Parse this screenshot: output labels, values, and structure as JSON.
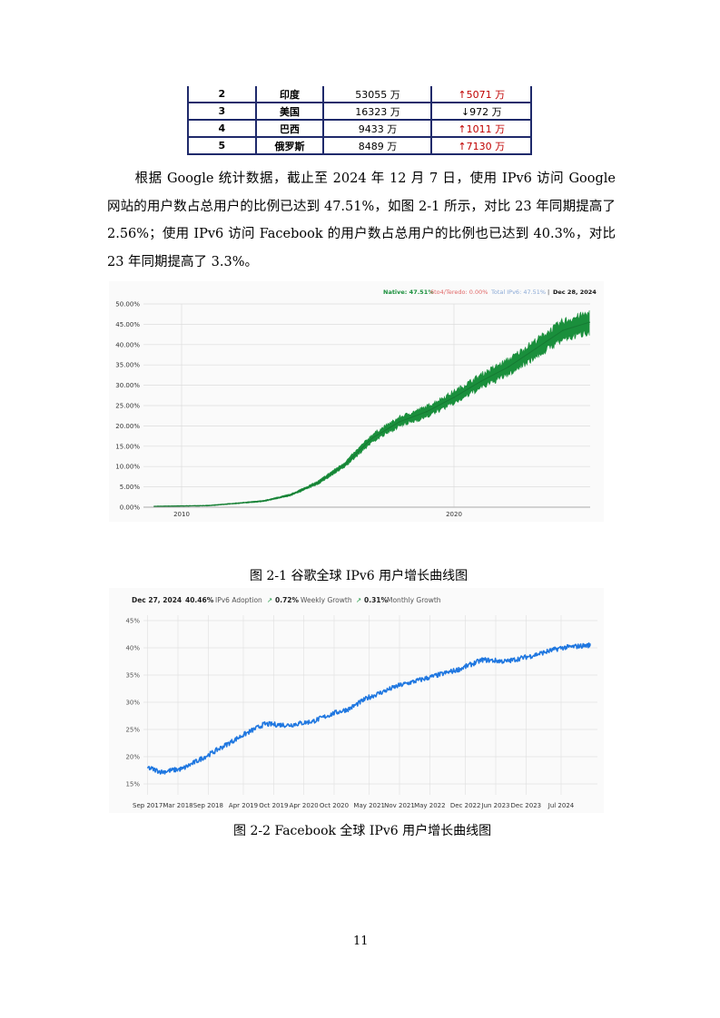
{
  "table": {
    "rows": [
      {
        "rank": "2",
        "country": "印度",
        "users": "53055 万",
        "change": "↑5071 万",
        "direction": "up"
      },
      {
        "rank": "3",
        "country": "美国",
        "users": "16323 万",
        "change": "↓972 万",
        "direction": "down"
      },
      {
        "rank": "4",
        "country": "巴西",
        "users": "9433 万",
        "change": "↑1011 万",
        "direction": "up"
      },
      {
        "rank": "5",
        "country": "俄罗斯",
        "users": "8489 万",
        "change": "↑7130 万",
        "direction": "up"
      }
    ]
  },
  "paragraph": "根据 Google 统计数据，截止至 2024 年 12 月 7 日，使用 IPv6 访问 Google 网站的用户数占总用户的比例已达到 47.51%，如图 2-1 所示，对比 23 年同期提高了 2.56%；使用 IPv6 访问 Facebook 的用户数占总用户的比例也已达到 40.3%，对比 23 年同期提高了 3.3%。",
  "figure1": {
    "caption": "图 2-1 谷歌全球 IPv6 用户增长曲线图",
    "legend": {
      "native": "Native: 47.51%",
      "teredo": "6to4/Teredo: 0.00%",
      "total": "Total IPv6: 47.51%",
      "date": "Dec 28, 2024"
    }
  },
  "figure2": {
    "caption": "图 2-2 Facebook 全球 IPv6 用户增长曲线图",
    "header": {
      "date": "Dec 27, 2024",
      "adoption_value": "40.46%",
      "adoption_label": "IPv6 Adoption",
      "weekly_value": "0.72%",
      "weekly_label": "Weekly Growth",
      "monthly_value": "0.31%",
      "monthly_label": "Monthly Growth"
    }
  },
  "page_number": "11",
  "colors": {
    "table_border": "#1f2a6b",
    "increase": "#c00000",
    "google_series": "#1a8f3c",
    "facebook_series": "#1f77e0"
  },
  "chart_data": [
    {
      "type": "area",
      "series": [
        {
          "name": "Native",
          "x": [
            2009.0,
            2011.0,
            2013.0,
            2014.0,
            2015.0,
            2016.0,
            2017.0,
            2018.0,
            2019.0,
            2020.0,
            2021.0,
            2022.0,
            2023.0,
            2024.0,
            2024.97
          ],
          "y": [
            0.2,
            0.4,
            1.5,
            3.0,
            6.0,
            10.5,
            17.0,
            21.0,
            23.5,
            27.0,
            31.0,
            34.5,
            39.0,
            43.5,
            45.5
          ]
        }
      ],
      "xticks": [
        "2010",
        "2020"
      ],
      "yticks": [
        "0.00%",
        "5.00%",
        "10.00%",
        "15.00%",
        "20.00%",
        "25.00%",
        "30.00%",
        "35.00%",
        "40.00%",
        "45.00%",
        "50.00%"
      ],
      "xlim": [
        2008.6,
        2025.0
      ],
      "ylim": [
        0,
        50
      ],
      "grid": true,
      "legend_position": "top-right"
    },
    {
      "type": "line",
      "series": [
        {
          "name": "IPv6 Adoption",
          "x": [
            2017.67,
            2017.9,
            2018.25,
            2018.7,
            2019.25,
            2019.6,
            2020.0,
            2020.4,
            2020.75,
            2021.0,
            2021.3,
            2021.8,
            2022.3,
            2022.8,
            2023.2,
            2023.6,
            2024.0,
            2024.5,
            2024.98
          ],
          "y": [
            18.0,
            17.2,
            17.8,
            20.5,
            24.0,
            26.0,
            25.8,
            26.5,
            28.0,
            28.8,
            30.8,
            33.0,
            34.5,
            36.0,
            37.8,
            37.5,
            38.5,
            40.0,
            40.5
          ]
        }
      ],
      "xticks": [
        "Sep 2017",
        "Mar 2018",
        "Sep 2018",
        "Apr 2019",
        "Oct 2019",
        "Apr 2020",
        "Oct 2020",
        "May 2021",
        "Nov 2021",
        "May 2022",
        "Dec 2022",
        "Jun 2023",
        "Dec 2023",
        "Jul 2024"
      ],
      "yticks": [
        "15%",
        "20%",
        "25%",
        "30%",
        "35%",
        "40%",
        "45%"
      ],
      "xlim": [
        2017.6,
        2025.1
      ],
      "ylim": [
        13,
        46
      ],
      "grid": true
    }
  ]
}
